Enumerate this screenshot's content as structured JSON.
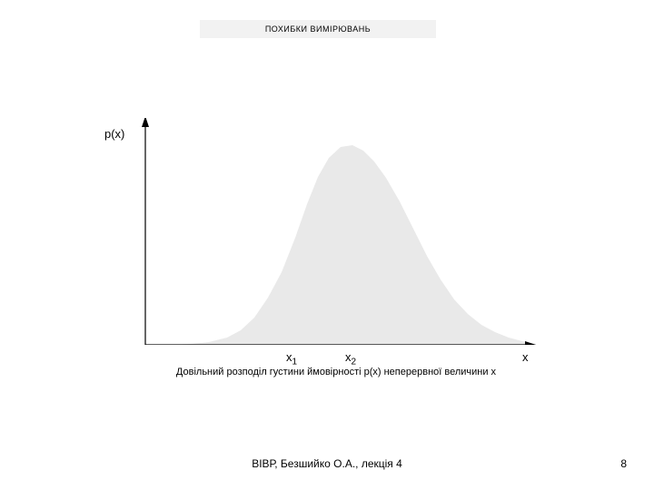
{
  "title": "ПОХИБКИ ВИМІРЮВАНЬ",
  "chart": {
    "type": "area",
    "background_color": "#ffffff",
    "curve_fill": "#e9e9e9",
    "axis_color": "#000000",
    "axis_width": 1.2,
    "y_axis_label": "p(x)",
    "x_axis_label": "x",
    "tick_labels": {
      "x1": "x",
      "x1_sub": "1",
      "x2": "x",
      "x2_sub": "2"
    },
    "xlim": [
      0,
      440
    ],
    "ylim": [
      0,
      250
    ],
    "curve_points": [
      [
        40,
        250
      ],
      [
        60,
        249
      ],
      [
        80,
        247
      ],
      [
        100,
        242
      ],
      [
        115,
        234
      ],
      [
        130,
        220
      ],
      [
        145,
        198
      ],
      [
        160,
        170
      ],
      [
        175,
        132
      ],
      [
        188,
        95
      ],
      [
        200,
        65
      ],
      [
        212,
        44
      ],
      [
        225,
        32
      ],
      [
        238,
        30
      ],
      [
        250,
        36
      ],
      [
        262,
        48
      ],
      [
        275,
        66
      ],
      [
        290,
        92
      ],
      [
        305,
        122
      ],
      [
        320,
        152
      ],
      [
        335,
        178
      ],
      [
        350,
        200
      ],
      [
        365,
        216
      ],
      [
        380,
        228
      ],
      [
        395,
        236
      ],
      [
        410,
        242
      ],
      [
        425,
        246
      ],
      [
        440,
        249
      ]
    ],
    "x1_tick_x": 175,
    "x2_tick_x": 238
  },
  "caption": "Довільний розподіл густини ймовірності p(x) неперервної величини x",
  "footer": "ВІВР, Безшийко О.А., лекція 4",
  "page_number": "8",
  "fonts": {
    "title_size": 9,
    "axis_label_size": 13,
    "caption_size": 11,
    "footer_size": 12
  }
}
